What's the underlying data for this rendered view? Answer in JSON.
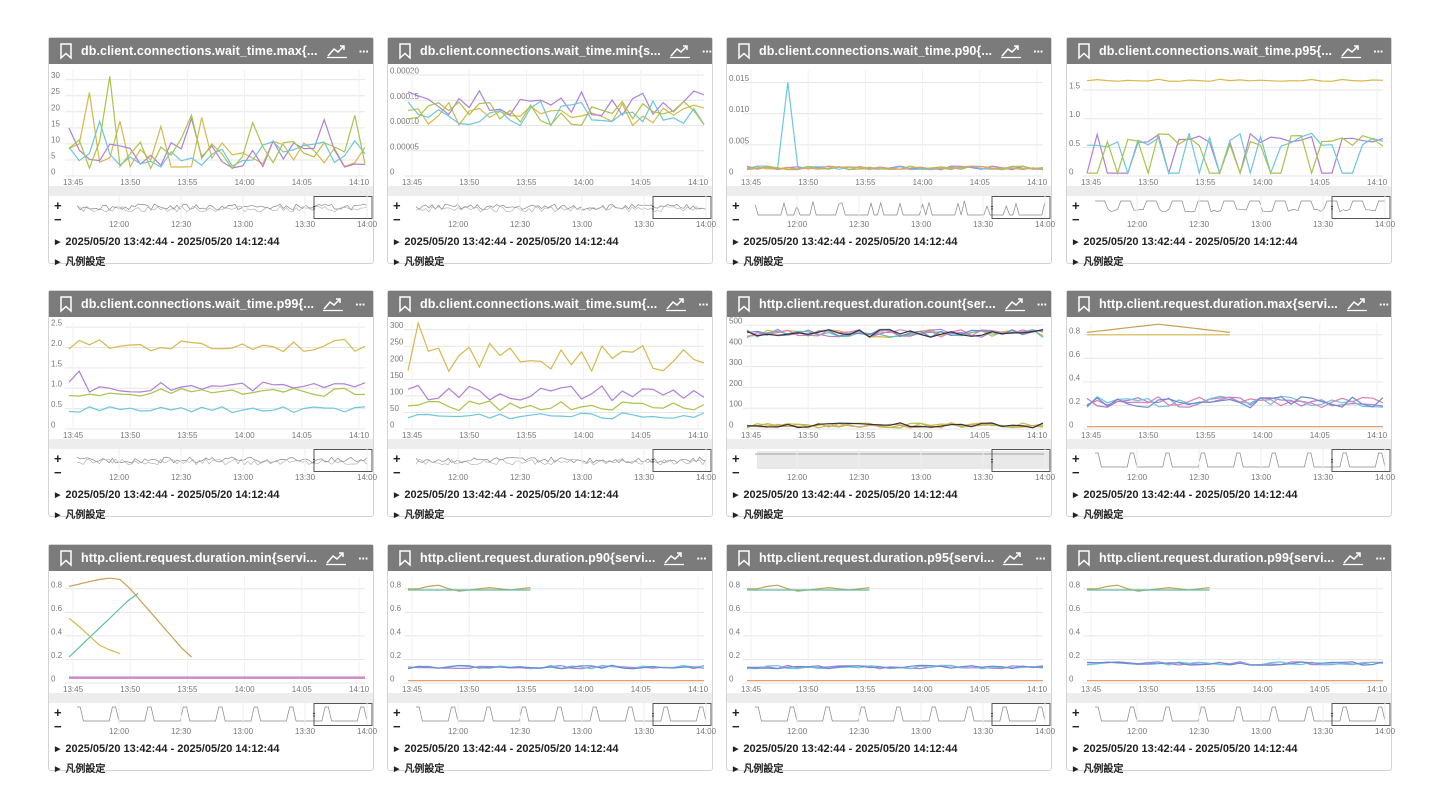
{
  "range_text": "2025/05/20 13:42:44 - 2025/05/20 14:12:44",
  "legend_label": "凡例設定",
  "zoom_in": "+",
  "zoom_out": "−",
  "menu_label": "···",
  "time_ticks": [
    "13:45",
    "13:50",
    "13:55",
    "14:00",
    "14:05",
    "14:10"
  ],
  "nav_ticks": [
    "12:00",
    "12:30",
    "13:00",
    "13:30",
    "14:00"
  ],
  "colors": [
    "#d6b84a",
    "#b07fd6",
    "#6cc6e0",
    "#a8c44a",
    "#e0a070",
    "#5cc0a8",
    "#e07fb0",
    "#6a8ad0",
    "#c8a050",
    "#333333"
  ],
  "panels": [
    {
      "title": "db.client.connections.wait_time.max{...",
      "yticks": [
        "0",
        "5",
        "10",
        "15",
        "20",
        "25",
        "30"
      ],
      "ymax": 33,
      "pattern": "spiky",
      "nav": "noise"
    },
    {
      "title": "db.client.connections.wait_time.min{s...",
      "yticks": [
        "0",
        "0.00005",
        "0.00010",
        "0.00015",
        "0.00020"
      ],
      "ymax": 0.00021,
      "pattern": "band_mid",
      "nav": "noise"
    },
    {
      "title": "db.client.connections.wait_time.p90{...",
      "yticks": [
        "0",
        "0.005",
        "0.010",
        "0.015"
      ],
      "ymax": 0.017,
      "pattern": "spike_low",
      "nav": "peaks"
    },
    {
      "title": "db.client.connections.wait_time.p95{...",
      "yticks": [
        "0",
        "0.5",
        "1.0",
        "1.5"
      ],
      "ymax": 1.85,
      "pattern": "steps",
      "nav": "square"
    },
    {
      "title": "db.client.connections.wait_time.p99{...",
      "yticks": [
        "0",
        "0.5",
        "1.0",
        "1.5",
        "2.0",
        "2.5"
      ],
      "ymax": 2.6,
      "pattern": "layers",
      "nav": "noise"
    },
    {
      "title": "db.client.connections.wait_time.sum{...",
      "yticks": [
        "0",
        "50",
        "100",
        "150",
        "200",
        "250",
        "300"
      ],
      "ymax": 320,
      "pattern": "layers_sum",
      "nav": "noise"
    },
    {
      "title": "http.client.request.duration.count{ser...",
      "yticks": [
        "0",
        "100",
        "200",
        "300",
        "400",
        "500"
      ],
      "ymax": 510,
      "pattern": "count",
      "nav": "flat"
    },
    {
      "title": "http.client.request.duration.max{servi...",
      "yticks": [
        "0",
        "0.2",
        "0.4",
        "0.6",
        "0.8"
      ],
      "ymax": 0.9,
      "pattern": "dur_max",
      "nav": "pulses"
    },
    {
      "title": "http.client.request.duration.min{servi...",
      "yticks": [
        "0",
        "0.2",
        "0.4",
        "0.6",
        "0.8"
      ],
      "ymax": 0.9,
      "pattern": "dur_min",
      "nav": "pulses"
    },
    {
      "title": "http.client.request.duration.p90{servi...",
      "yticks": [
        "0",
        "0.2",
        "0.4",
        "0.6",
        "0.8"
      ],
      "ymax": 0.9,
      "pattern": "dur_p",
      "nav": "pulses"
    },
    {
      "title": "http.client.request.duration.p95{servi...",
      "yticks": [
        "0",
        "0.2",
        "0.4",
        "0.6",
        "0.8"
      ],
      "ymax": 0.9,
      "pattern": "dur_p",
      "nav": "pulses"
    },
    {
      "title": "http.client.request.duration.p99{servi...",
      "yticks": [
        "0",
        "0.2",
        "0.4",
        "0.6",
        "0.8"
      ],
      "ymax": 0.9,
      "pattern": "dur_p99",
      "nav": "pulses"
    }
  ]
}
